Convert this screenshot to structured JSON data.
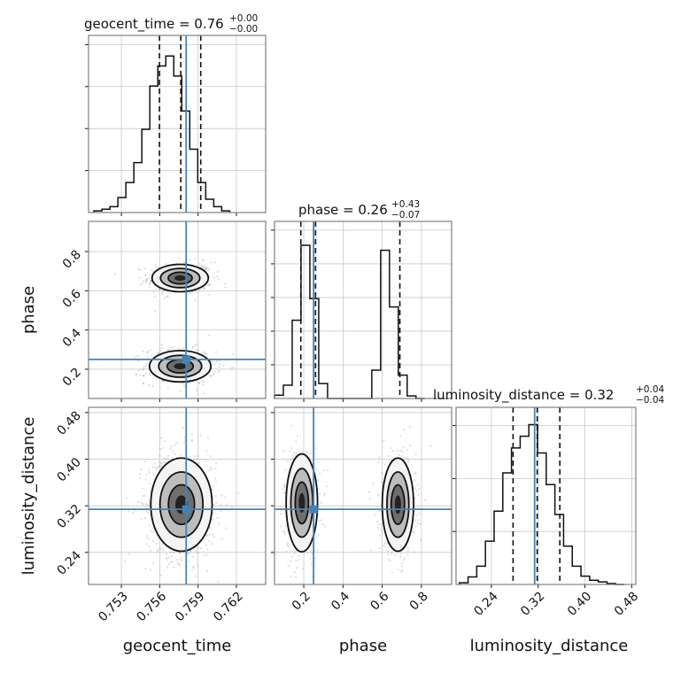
{
  "chart_data": {
    "type": "corner",
    "parameters": [
      "geocent_time",
      "phase",
      "luminosity_distance"
    ],
    "axis_labels": {
      "geocent_time": "geocent_time",
      "phase": "phase",
      "luminosity_distance": "luminosity_distance"
    },
    "ranges": {
      "geocent_time": [
        0.75043,
        0.76429
      ],
      "phase": [
        0.0507,
        0.954
      ],
      "luminosity_distance": [
        0.1796,
        0.487
      ]
    },
    "y_ranges": {
      "phase": [
        0.0507,
        0.954
      ],
      "luminosity_distance": [
        0.185,
        0.489
      ]
    },
    "ticks": {
      "geocent_time": [
        {
          "v": 0.753,
          "label": "0.753"
        },
        {
          "v": 0.756,
          "label": "0.756"
        },
        {
          "v": 0.759,
          "label": "0.759"
        },
        {
          "v": 0.762,
          "label": "0.762"
        }
      ],
      "phase": [
        {
          "v": 0.2,
          "label": "0.2"
        },
        {
          "v": 0.4,
          "label": "0.4"
        },
        {
          "v": 0.6,
          "label": "0.6"
        },
        {
          "v": 0.8,
          "label": "0.8"
        }
      ],
      "luminosity_distance": [
        {
          "v": 0.24,
          "label": "0.24"
        },
        {
          "v": 0.32,
          "label": "0.32"
        },
        {
          "v": 0.4,
          "label": "0.40"
        },
        {
          "v": 0.48,
          "label": "0.48"
        }
      ]
    },
    "truths": {
      "geocent_time": 0.75807,
      "phase": 0.25,
      "luminosity_distance": 0.314
    },
    "truth_color": "#4682b4",
    "titles": [
      {
        "param": "geocent_time",
        "name": "geocent_time",
        "median": "0.76",
        "plus": "+0.00",
        "minus": "−0.00"
      },
      {
        "param": "phase",
        "name": "phase",
        "median": "0.26",
        "plus": "+0.43",
        "minus": "−0.07"
      },
      {
        "param": "luminosity_distance",
        "name": "luminosity_distance",
        "median": "0.32",
        "plus": "+0.04",
        "minus": "−0.04"
      }
    ],
    "histograms": {
      "geocent_time": {
        "bin_edges_start": 0.75085,
        "bin_width": 0.000625,
        "y_max": 1.0,
        "counts": [
          0.01,
          0.02,
          0.035,
          0.09,
          0.18,
          0.3,
          0.5,
          0.76,
          0.88,
          0.94,
          0.82,
          0.61,
          0.38,
          0.18,
          0.08,
          0.035,
          0.01
        ],
        "quantiles": [
          0.75598,
          0.75765,
          0.75921
        ]
      },
      "phase": {
        "bin_edges_start": 0.0507,
        "bin_width": 0.0451,
        "y_max": 1.0,
        "counts": [
          0.02,
          0.08,
          0.47,
          0.92,
          0.6,
          0.09,
          0,
          0,
          0,
          0,
          0,
          0.17,
          0.89,
          0.55,
          0.14,
          0.015,
          0
        ],
        "quantiles": [
          0.185,
          0.26,
          0.69
        ]
      },
      "luminosity_distance": {
        "bin_edges_start": 0.1853,
        "bin_width": 0.01485,
        "y_max": 1.0,
        "counts": [
          0.01,
          0.045,
          0.11,
          0.26,
          0.44,
          0.67,
          0.82,
          0.89,
          0.96,
          0.79,
          0.6,
          0.42,
          0.23,
          0.11,
          0.05,
          0.025,
          0.015,
          0.005,
          0
        ],
        "quantiles": [
          0.2771,
          0.3184,
          0.3571
        ]
      }
    },
    "scatter_2d": [
      {
        "x": "geocent_time",
        "y": "phase",
        "modes": [
          {
            "cx": 0.7576,
            "cy": 0.665,
            "sx": 0.0011,
            "sy": 0.035,
            "weight": 0.5
          },
          {
            "cx": 0.7576,
            "cy": 0.215,
            "sx": 0.0012,
            "sy": 0.04,
            "weight": 0.5
          }
        ]
      },
      {
        "x": "geocent_time",
        "y": "luminosity_distance",
        "modes": [
          {
            "cx": 0.7577,
            "cy": 0.322,
            "sx": 0.0012,
            "sy": 0.04,
            "weight": 1.0
          }
        ]
      },
      {
        "x": "phase",
        "y": "luminosity_distance",
        "modes": [
          {
            "cx": 0.19,
            "cy": 0.325,
            "sx": 0.04,
            "sy": 0.042,
            "weight": 0.5
          },
          {
            "cx": 0.68,
            "cy": 0.322,
            "sx": 0.04,
            "sy": 0.04,
            "weight": 0.5
          }
        ]
      }
    ]
  }
}
